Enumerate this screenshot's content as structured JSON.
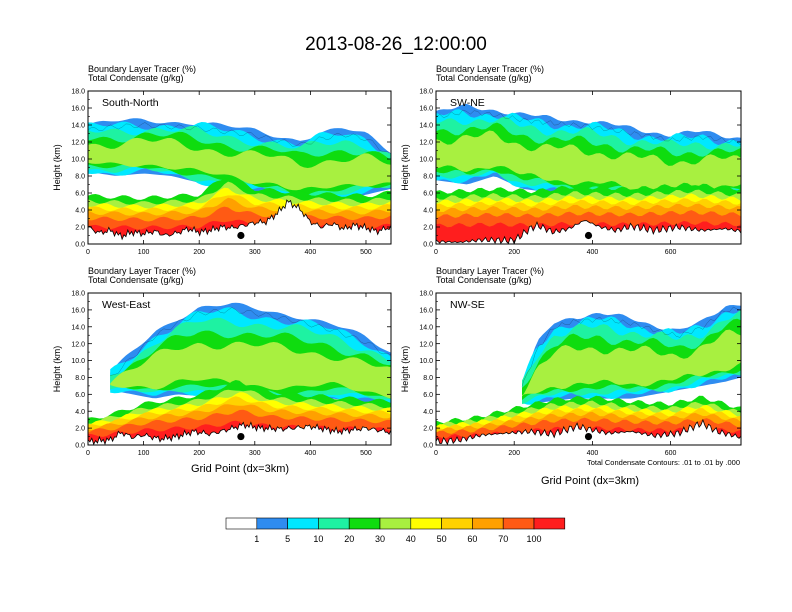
{
  "title": "2013-08-26_12:00:00",
  "panel_header": {
    "line1": "Boundary Layer Tracer   (%)",
    "line2": "Total Condensate   (g/kg)"
  },
  "ylabel": "Height (km)",
  "xlabel": "Grid Point (dx=3km)",
  "contour_note": "Total Condensate Contours: .01 to .01 by .000",
  "colorbar": {
    "colors": [
      "#ffffff",
      "#2f8cf0",
      "#00e8ff",
      "#1ef2a2",
      "#0fdc0f",
      "#a8f040",
      "#ffff00",
      "#ffd200",
      "#ffa000",
      "#ff5a14",
      "#ff1e1e"
    ],
    "labels": [
      "1",
      "5",
      "10",
      "20",
      "30",
      "40",
      "50",
      "60",
      "70",
      "100"
    ]
  },
  "chart_data": [
    {
      "type": "heatmap",
      "name": "South-North",
      "ylim": [
        0,
        18
      ],
      "xlim": [
        0,
        545
      ],
      "yticks": [
        "0.0",
        "2.0",
        "4.0",
        "6.0",
        "8.0",
        "10.0",
        "12.0",
        "14.0",
        "16.0",
        "18.0"
      ],
      "xticks": [
        "0",
        "100",
        "200",
        "300",
        "400",
        "500"
      ],
      "marker_x": 275,
      "marker_y": 1.0,
      "cloud": [
        [
          0,
          8.5,
          14.0
        ],
        [
          50,
          8.0,
          14.4
        ],
        [
          100,
          8.3,
          14.6
        ],
        [
          150,
          8.0,
          14.4
        ],
        [
          200,
          7.2,
          14.2
        ],
        [
          250,
          6.5,
          13.8
        ],
        [
          300,
          6.0,
          13.4
        ],
        [
          340,
          6.0,
          12.8
        ],
        [
          380,
          5.0,
          12.2
        ],
        [
          420,
          5.0,
          13.0
        ],
        [
          460,
          5.2,
          13.5
        ],
        [
          500,
          5.8,
          13.0
        ],
        [
          545,
          6.5,
          11.0
        ]
      ],
      "pbl": [
        [
          0,
          4.2
        ],
        [
          100,
          4.0
        ],
        [
          200,
          4.3
        ],
        [
          250,
          6.0
        ],
        [
          300,
          4.8
        ],
        [
          400,
          4.4
        ],
        [
          500,
          4.2
        ],
        [
          545,
          4.5
        ]
      ],
      "terrain": [
        [
          0,
          2.0
        ],
        [
          20,
          1.3
        ],
        [
          40,
          1.6
        ],
        [
          60,
          0.9
        ],
        [
          80,
          1.4
        ],
        [
          100,
          1.2
        ],
        [
          120,
          1.5
        ],
        [
          140,
          1.0
        ],
        [
          160,
          1.3
        ],
        [
          180,
          1.8
        ],
        [
          200,
          1.4
        ],
        [
          220,
          1.6
        ],
        [
          240,
          2.0
        ],
        [
          260,
          1.9
        ],
        [
          280,
          2.2
        ],
        [
          300,
          2.5
        ],
        [
          320,
          2.6
        ],
        [
          340,
          3.6
        ],
        [
          360,
          5.0
        ],
        [
          380,
          4.2
        ],
        [
          400,
          2.6
        ],
        [
          420,
          2.0
        ],
        [
          440,
          2.4
        ],
        [
          460,
          1.8
        ],
        [
          480,
          2.2
        ],
        [
          500,
          1.9
        ],
        [
          520,
          1.5
        ],
        [
          545,
          2.0
        ]
      ]
    },
    {
      "type": "heatmap",
      "name": "SW-NE",
      "ylim": [
        0,
        18
      ],
      "xlim": [
        0,
        780
      ],
      "yticks": [
        "0.0",
        "2.0",
        "4.0",
        "6.0",
        "8.0",
        "10.0",
        "12.0",
        "14.0",
        "16.0",
        "18.0"
      ],
      "xticks": [
        "0",
        "200",
        "400",
        "600"
      ],
      "marker_x": 390,
      "marker_y": 1.0,
      "cloud": [
        [
          0,
          7.5,
          15.5
        ],
        [
          80,
          7.0,
          16.2
        ],
        [
          150,
          8.0,
          15.8
        ],
        [
          220,
          6.5,
          15.2
        ],
        [
          300,
          6.0,
          14.8
        ],
        [
          380,
          5.5,
          14.5
        ],
        [
          450,
          5.5,
          14.0
        ],
        [
          520,
          5.0,
          13.5
        ],
        [
          600,
          5.0,
          12.8
        ],
        [
          680,
          5.2,
          13.2
        ],
        [
          780,
          6.0,
          12.5
        ]
      ],
      "pbl": [
        [
          0,
          4.5
        ],
        [
          150,
          4.8
        ],
        [
          250,
          4.6
        ],
        [
          350,
          5.0
        ],
        [
          500,
          4.8
        ],
        [
          650,
          5.2
        ],
        [
          780,
          4.8
        ]
      ],
      "terrain": [
        [
          0,
          0.3
        ],
        [
          60,
          0.2
        ],
        [
          120,
          0.5
        ],
        [
          200,
          0.4
        ],
        [
          240,
          1.8
        ],
        [
          260,
          2.2
        ],
        [
          300,
          1.4
        ],
        [
          340,
          1.8
        ],
        [
          380,
          2.8
        ],
        [
          420,
          2.0
        ],
        [
          460,
          1.6
        ],
        [
          500,
          2.1
        ],
        [
          560,
          1.6
        ],
        [
          620,
          2.0
        ],
        [
          680,
          1.6
        ],
        [
          740,
          1.8
        ],
        [
          780,
          1.5
        ]
      ]
    },
    {
      "type": "heatmap",
      "name": "West-East",
      "ylim": [
        0,
        18
      ],
      "xlim": [
        0,
        545
      ],
      "yticks": [
        "0.0",
        "2.0",
        "4.0",
        "6.0",
        "8.0",
        "10.0",
        "12.0",
        "14.0",
        "16.0",
        "18.0"
      ],
      "xticks": [
        "0",
        "100",
        "200",
        "300",
        "400",
        "500"
      ],
      "marker_x": 275,
      "marker_y": 1.0,
      "cloud": [
        [
          40,
          6.5,
          8.5
        ],
        [
          80,
          6.0,
          11.0
        ],
        [
          120,
          5.5,
          13.5
        ],
        [
          160,
          6.0,
          15.0
        ],
        [
          200,
          5.8,
          16.2
        ],
        [
          260,
          5.2,
          16.6
        ],
        [
          320,
          5.0,
          16.0
        ],
        [
          380,
          5.0,
          15.2
        ],
        [
          440,
          5.5,
          14.2
        ],
        [
          500,
          5.0,
          12.8
        ],
        [
          545,
          4.8,
          11.0
        ]
      ],
      "pbl": [
        [
          0,
          2.2
        ],
        [
          50,
          2.8
        ],
        [
          100,
          3.6
        ],
        [
          200,
          4.4
        ],
        [
          270,
          5.6
        ],
        [
          330,
          4.6
        ],
        [
          440,
          4.2
        ],
        [
          545,
          3.8
        ]
      ],
      "terrain": [
        [
          0,
          0.4
        ],
        [
          40,
          0.6
        ],
        [
          60,
          1.5
        ],
        [
          80,
          0.9
        ],
        [
          100,
          1.2
        ],
        [
          130,
          0.7
        ],
        [
          160,
          1.0
        ],
        [
          190,
          1.6
        ],
        [
          220,
          1.3
        ],
        [
          250,
          1.8
        ],
        [
          280,
          2.4
        ],
        [
          310,
          2.0
        ],
        [
          350,
          1.9
        ],
        [
          400,
          2.2
        ],
        [
          450,
          1.6
        ],
        [
          500,
          2.0
        ],
        [
          545,
          1.5
        ]
      ]
    },
    {
      "type": "heatmap",
      "name": "NW-SE",
      "ylim": [
        0,
        18
      ],
      "xlim": [
        0,
        780
      ],
      "yticks": [
        "0.0",
        "2.0",
        "4.0",
        "6.0",
        "8.0",
        "10.0",
        "12.0",
        "14.0",
        "16.0",
        "18.0"
      ],
      "xticks": [
        "0",
        "200",
        "400",
        "600"
      ],
      "marker_x": 390,
      "marker_y": 1.0,
      "cloud": [
        [
          220,
          5.0,
          7.5
        ],
        [
          260,
          5.0,
          12.0
        ],
        [
          300,
          5.2,
          14.5
        ],
        [
          350,
          5.5,
          15.2
        ],
        [
          420,
          5.5,
          15.5
        ],
        [
          500,
          5.5,
          15.0
        ],
        [
          560,
          6.0,
          14.2
        ],
        [
          620,
          6.5,
          13.5
        ],
        [
          680,
          7.0,
          14.5
        ],
        [
          740,
          7.5,
          16.5
        ],
        [
          780,
          8.0,
          16.8
        ]
      ],
      "pbl": [
        [
          0,
          2.0
        ],
        [
          100,
          2.4
        ],
        [
          200,
          3.2
        ],
        [
          300,
          4.0
        ],
        [
          400,
          4.2
        ],
        [
          500,
          3.8
        ],
        [
          600,
          3.6
        ],
        [
          680,
          4.2
        ],
        [
          780,
          3.2
        ]
      ],
      "terrain": [
        [
          0,
          0.4
        ],
        [
          60,
          0.6
        ],
        [
          120,
          1.2
        ],
        [
          180,
          1.4
        ],
        [
          240,
          1.6
        ],
        [
          300,
          1.3
        ],
        [
          360,
          2.2
        ],
        [
          400,
          1.8
        ],
        [
          440,
          1.4
        ],
        [
          500,
          1.6
        ],
        [
          560,
          1.1
        ],
        [
          620,
          1.4
        ],
        [
          680,
          2.6
        ],
        [
          720,
          1.6
        ],
        [
          780,
          0.9
        ]
      ]
    }
  ]
}
